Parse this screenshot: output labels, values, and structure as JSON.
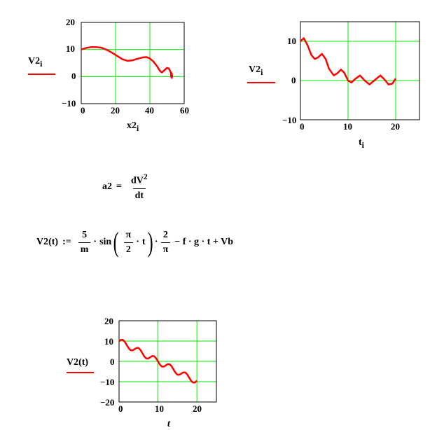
{
  "colors": {
    "trace": "#ff0000",
    "grid": "#00ee00",
    "frame": "#000000"
  },
  "chart_data": [
    {
      "type": "line",
      "ylabel": "V2",
      "ylabel_sub": "i",
      "xlabel": "x2",
      "xlabel_sub": "i",
      "xlim": [
        0,
        60
      ],
      "ylim": [
        -10,
        20
      ],
      "xticks": [
        "0",
        "20",
        "40",
        "60"
      ],
      "yticks": [
        "20",
        "10",
        "0",
        "−10"
      ],
      "xgrid": [
        20,
        40
      ],
      "ygrid": [
        0,
        10
      ],
      "x": [
        0,
        3,
        6,
        9,
        12,
        15,
        18,
        21,
        24,
        27,
        30,
        33,
        36,
        38,
        40,
        42,
        44,
        46,
        47,
        48,
        50,
        51,
        52,
        52.8,
        53,
        52.8,
        52.4,
        52.3,
        52.6,
        53
      ],
      "y": [
        10,
        10.6,
        10.9,
        10.9,
        10.6,
        9.8,
        8.8,
        7.6,
        6.4,
        5.8,
        6,
        6.6,
        7.1,
        7.2,
        6.7,
        5.6,
        4,
        2,
        1.5,
        2.1,
        3.2,
        3,
        1.8,
        1,
        0,
        -0.5,
        0,
        1,
        1.3,
        0.6
      ]
    },
    {
      "type": "line",
      "ylabel": "V2",
      "ylabel_sub": "i",
      "xlabel": "t",
      "xlabel_sub": "i",
      "xlim": [
        0,
        25
      ],
      "ylim": [
        -10,
        15
      ],
      "xticks": [
        "0",
        "10",
        "20"
      ],
      "yticks": [
        "10",
        "0",
        "−10"
      ],
      "xgrid": [
        10,
        20
      ],
      "ygrid": [
        0,
        10
      ],
      "x": [
        0,
        0.7,
        1.5,
        2.3,
        3,
        3.7,
        4.5,
        5.3,
        6,
        7,
        7.8,
        8.5,
        9.2,
        10,
        10.7,
        11.5,
        12.5,
        13.5,
        14.5,
        15.5,
        16.8,
        17.7,
        18.5,
        19.3,
        20
      ],
      "y": [
        10,
        10.8,
        9,
        6.5,
        5.5,
        5.9,
        6.8,
        5.5,
        3,
        1.3,
        1.9,
        2.8,
        2,
        0,
        -0.5,
        0.4,
        1.3,
        0,
        -1,
        0,
        1.3,
        0.2,
        -1,
        -0.8,
        0.5
      ]
    },
    {
      "type": "line",
      "ylabel": "V2(t)",
      "xlabel": "t",
      "xlim": [
        0,
        25
      ],
      "ylim": [
        -20,
        20
      ],
      "xticks": [
        "0",
        "10",
        "20"
      ],
      "yticks": [
        "20",
        "10",
        "0",
        "−10",
        "−20"
      ],
      "xgrid": [
        10,
        20
      ],
      "ygrid": [
        -10,
        0,
        10
      ],
      "x": [
        0,
        0.5,
        1,
        1.5,
        2,
        2.5,
        3,
        3.5,
        4,
        4.5,
        5,
        5.5,
        6,
        6.5,
        7,
        7.5,
        8,
        8.5,
        9,
        9.5,
        10,
        10.5,
        11,
        11.5,
        12,
        12.5,
        13,
        13.5,
        14,
        14.5,
        15,
        15.5,
        16,
        16.5,
        17,
        17.5,
        18,
        18.5,
        19,
        19.5,
        20
      ],
      "y": [
        10,
        10.6,
        10.6,
        9.6,
        8,
        6.4,
        5.4,
        5.4,
        6,
        6.6,
        6.6,
        5.6,
        4,
        2.4,
        1.4,
        1.4,
        2,
        2.6,
        2.6,
        1.6,
        0,
        -1.6,
        -2.6,
        -2.6,
        -2,
        -1.4,
        -1.4,
        -2.4,
        -4,
        -5.6,
        -6.6,
        -6.6,
        -6,
        -5.4,
        -5.4,
        -6.4,
        -8,
        -9.6,
        -10.4,
        -10.4,
        -9.5
      ]
    }
  ],
  "equations": {
    "a2": {
      "lhs": "a2",
      "op": "=",
      "num": "dV",
      "exp": "2",
      "den": "dt"
    },
    "v2": {
      "lhs": "V2(t)",
      "op": ":=",
      "f1num": "5",
      "f1den": "m",
      "dot": "·",
      "sin": "sin",
      "f2num": "π",
      "f2den": "2",
      "t": "t",
      "f3num": "2",
      "f3den": "π",
      "rest": "− f · g · t + Vb"
    }
  }
}
